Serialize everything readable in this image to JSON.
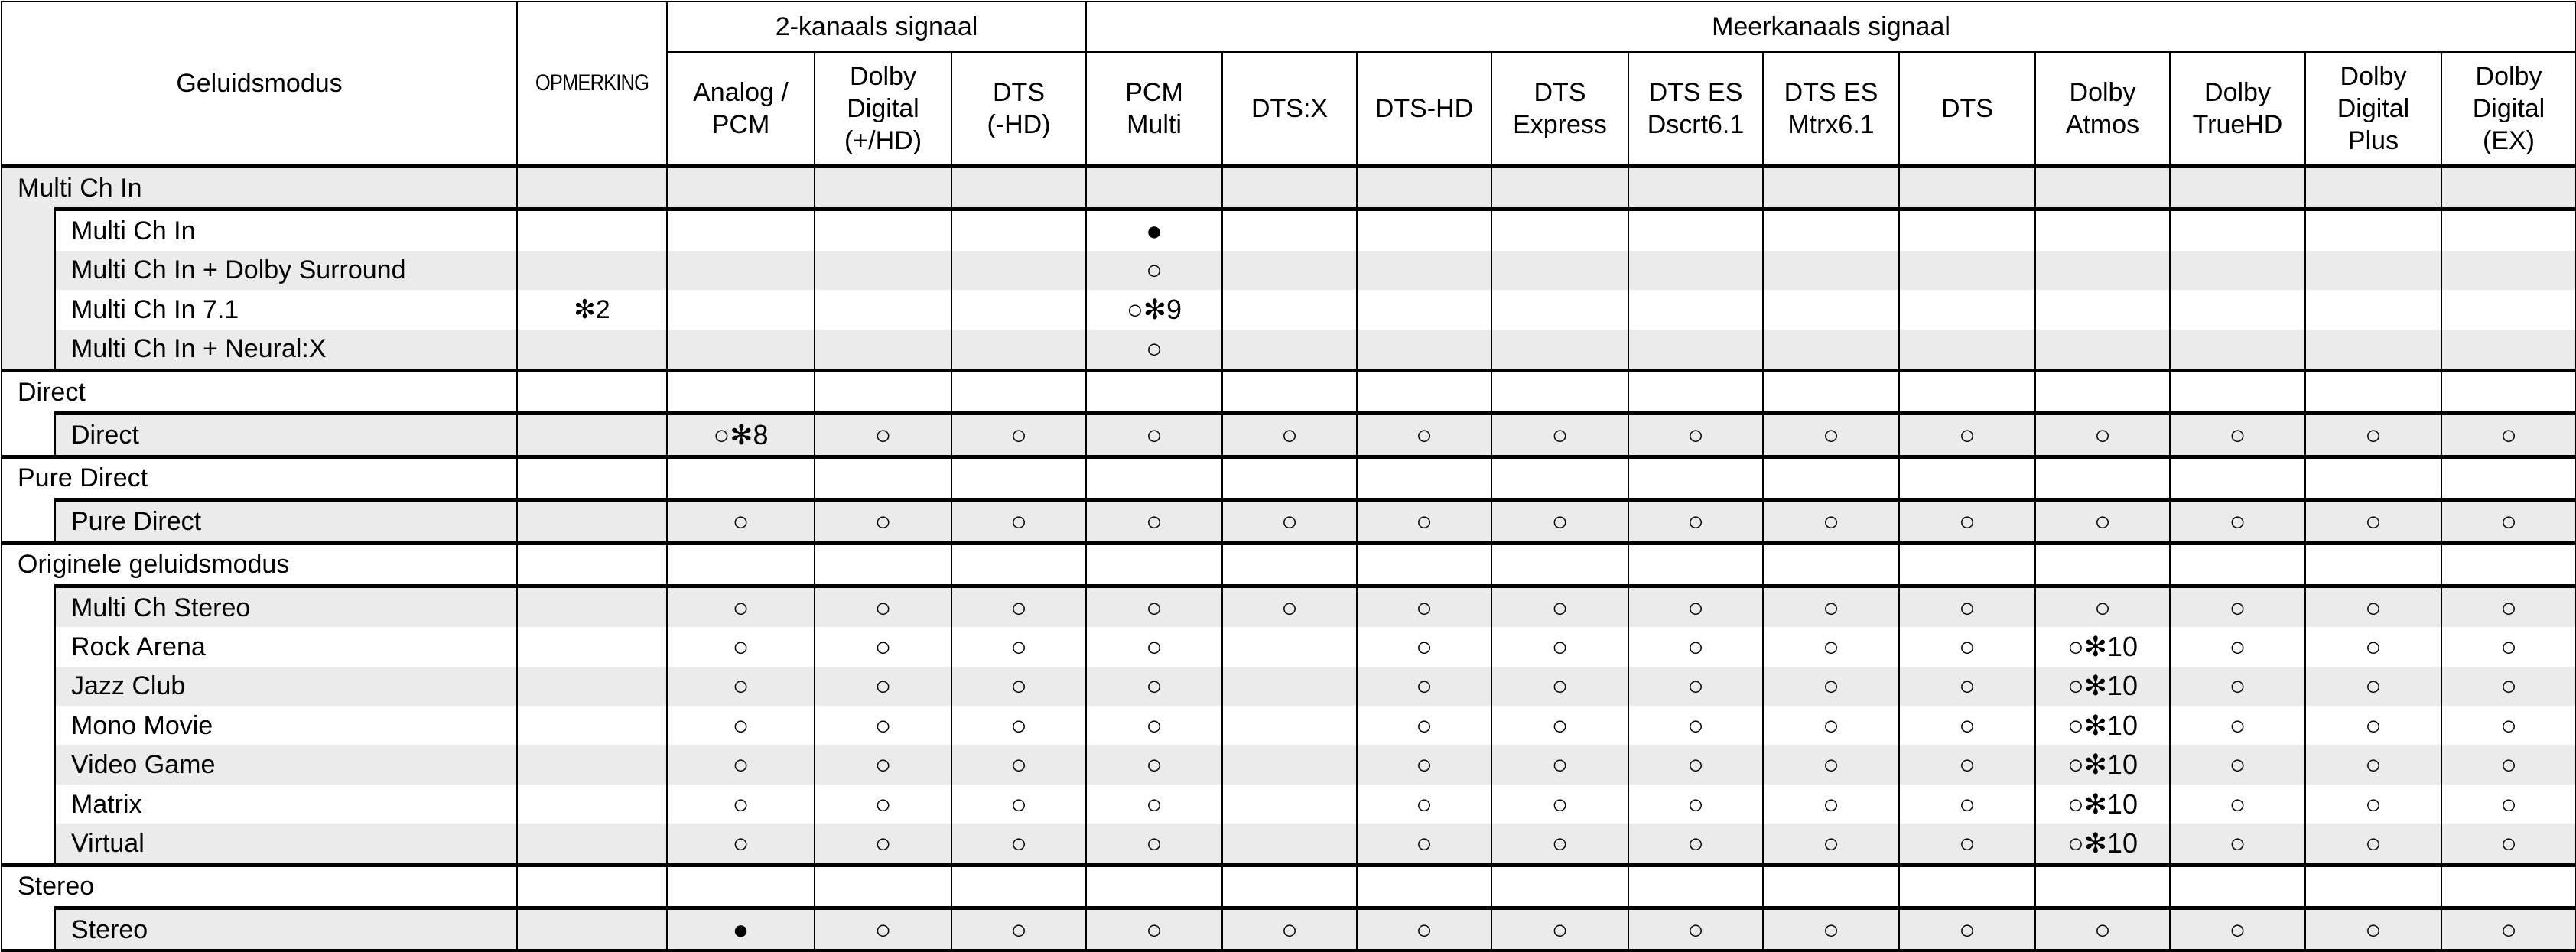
{
  "header": {
    "mode_label": "Geluidsmodus",
    "remark_label": "OPMERKING",
    "group_2ch": "2-kanaals signaal",
    "group_multi": "Meerkanaals signaal",
    "columns_2ch": [
      "Analog /\nPCM",
      "Dolby\nDigital\n(+/HD)",
      "DTS\n(-HD)"
    ],
    "columns_multi": [
      "PCM\nMulti",
      "DTS:X",
      "DTS-HD",
      "DTS\nExpress",
      "DTS ES\nDscrt6.1",
      "DTS ES\nMtrx6.1",
      "DTS",
      "Dolby\nAtmos",
      "Dolby\nTrueHD",
      "Dolby\nDigital\nPlus",
      "Dolby\nDigital\n(EX)"
    ]
  },
  "legend_symbols": {
    "default": "●",
    "selectable": "○"
  },
  "groups": [
    {
      "label": "Multi Ch In",
      "shaded_header": true,
      "shaded_indent": true,
      "rows": [
        {
          "label": "Multi Ch In",
          "remark": "",
          "shaded": false,
          "cells": [
            "",
            "",
            "",
            "●",
            "",
            "",
            "",
            "",
            "",
            "",
            "",
            "",
            "",
            ""
          ]
        },
        {
          "label": "Multi Ch In + Dolby Surround",
          "remark": "",
          "shaded": true,
          "cells": [
            "",
            "",
            "",
            "○",
            "",
            "",
            "",
            "",
            "",
            "",
            "",
            "",
            "",
            ""
          ]
        },
        {
          "label": "Multi Ch In 7.1",
          "remark": "✻2",
          "shaded": false,
          "cells": [
            "",
            "",
            "",
            "○✻9",
            "",
            "",
            "",
            "",
            "",
            "",
            "",
            "",
            "",
            ""
          ]
        },
        {
          "label": "Multi Ch In + Neural:X",
          "remark": "",
          "shaded": true,
          "cells": [
            "",
            "",
            "",
            "○",
            "",
            "",
            "",
            "",
            "",
            "",
            "",
            "",
            "",
            ""
          ]
        }
      ]
    },
    {
      "label": "Direct",
      "shaded_header": false,
      "shaded_indent": false,
      "rows": [
        {
          "label": "Direct",
          "remark": "",
          "shaded": true,
          "cells": [
            "○✻8",
            "○",
            "○",
            "○",
            "○",
            "○",
            "○",
            "○",
            "○",
            "○",
            "○",
            "○",
            "○",
            "○"
          ]
        }
      ]
    },
    {
      "label": "Pure Direct",
      "shaded_header": false,
      "shaded_indent": false,
      "rows": [
        {
          "label": "Pure Direct",
          "remark": "",
          "shaded": true,
          "cells": [
            "○",
            "○",
            "○",
            "○",
            "○",
            "○",
            "○",
            "○",
            "○",
            "○",
            "○",
            "○",
            "○",
            "○"
          ]
        }
      ]
    },
    {
      "label": "Originele geluidsmodus",
      "shaded_header": false,
      "shaded_indent": false,
      "rows": [
        {
          "label": "Multi Ch Stereo",
          "remark": "",
          "shaded": true,
          "cells": [
            "○",
            "○",
            "○",
            "○",
            "○",
            "○",
            "○",
            "○",
            "○",
            "○",
            "○",
            "○",
            "○",
            "○"
          ]
        },
        {
          "label": "Rock Arena",
          "remark": "",
          "shaded": false,
          "cells": [
            "○",
            "○",
            "○",
            "○",
            "",
            "○",
            "○",
            "○",
            "○",
            "○",
            "○✻10",
            "○",
            "○",
            "○"
          ]
        },
        {
          "label": "Jazz Club",
          "remark": "",
          "shaded": true,
          "cells": [
            "○",
            "○",
            "○",
            "○",
            "",
            "○",
            "○",
            "○",
            "○",
            "○",
            "○✻10",
            "○",
            "○",
            "○"
          ]
        },
        {
          "label": "Mono Movie",
          "remark": "",
          "shaded": false,
          "cells": [
            "○",
            "○",
            "○",
            "○",
            "",
            "○",
            "○",
            "○",
            "○",
            "○",
            "○✻10",
            "○",
            "○",
            "○"
          ]
        },
        {
          "label": "Video Game",
          "remark": "",
          "shaded": true,
          "cells": [
            "○",
            "○",
            "○",
            "○",
            "",
            "○",
            "○",
            "○",
            "○",
            "○",
            "○✻10",
            "○",
            "○",
            "○"
          ]
        },
        {
          "label": "Matrix",
          "remark": "",
          "shaded": false,
          "cells": [
            "○",
            "○",
            "○",
            "○",
            "",
            "○",
            "○",
            "○",
            "○",
            "○",
            "○✻10",
            "○",
            "○",
            "○"
          ]
        },
        {
          "label": "Virtual",
          "remark": "",
          "shaded": true,
          "cells": [
            "○",
            "○",
            "○",
            "○",
            "",
            "○",
            "○",
            "○",
            "○",
            "○",
            "○✻10",
            "○",
            "○",
            "○"
          ]
        }
      ]
    },
    {
      "label": "Stereo",
      "shaded_header": false,
      "shaded_indent": false,
      "rows": [
        {
          "label": "Stereo",
          "remark": "",
          "shaded": true,
          "cells": [
            "●",
            "○",
            "○",
            "○",
            "○",
            "○",
            "○",
            "○",
            "○",
            "○",
            "○",
            "○",
            "○",
            "○"
          ]
        }
      ]
    }
  ]
}
